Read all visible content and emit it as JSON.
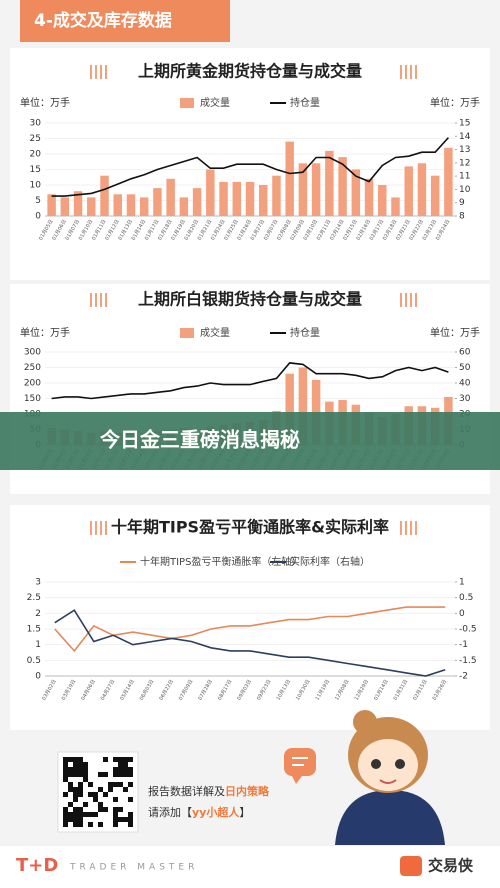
{
  "header": {
    "title": "4-成交及库存数据"
  },
  "banner": {
    "text": "今日金三重磅消息揭秘"
  },
  "chart_data": [
    {
      "type": "bar",
      "title": "上期所黄金期货持仓量与成交量",
      "ylabel": "单位：万手",
      "y2label": "单位：万手",
      "categories": [
        "01月05日",
        "01月06日",
        "01月07日",
        "01月10日",
        "01月11日",
        "01月12日",
        "01月13日",
        "01月14日",
        "01月17日",
        "01月18日",
        "01月19日",
        "01月20日",
        "01月21日",
        "01月24日",
        "01月25日",
        "01月26日",
        "01月27日",
        "02月07日",
        "02月08日",
        "02月09日",
        "02月10日",
        "02月11日",
        "02月14日",
        "02月15日",
        "02月16日",
        "02月17日",
        "02月18日",
        "02月21日",
        "02月22日",
        "02月23日",
        "02月24日"
      ],
      "series": [
        {
          "name": "成交量",
          "type": "bar",
          "color": "#f3a07e",
          "values": [
            7,
            6,
            8,
            6,
            13,
            7,
            7,
            6,
            9,
            12,
            6,
            9,
            15,
            11,
            11,
            11,
            10,
            13,
            24,
            17,
            17,
            21,
            19,
            15,
            12,
            10,
            6,
            16,
            17,
            13,
            22
          ]
        },
        {
          "name": "持仓量",
          "type": "line",
          "axis": "y2",
          "color": "#111111",
          "values": [
            9.5,
            9.5,
            9.6,
            9.7,
            10.0,
            10.4,
            10.8,
            11.1,
            11.5,
            11.8,
            12.1,
            12.4,
            11.6,
            11.6,
            11.9,
            11.9,
            11.9,
            11.5,
            11.2,
            11.3,
            12.4,
            12.4,
            11.9,
            11.0,
            10.6,
            11.8,
            12.4,
            12.5,
            12.8,
            12.8,
            13.9
          ]
        }
      ],
      "ylim": [
        0,
        30
      ],
      "yticks": [
        0,
        5,
        10,
        15,
        20,
        25,
        30
      ],
      "y2lim": [
        8,
        15
      ],
      "y2ticks": [
        8,
        9,
        10,
        11,
        12,
        13,
        14,
        15
      ],
      "legend": "top"
    },
    {
      "type": "bar",
      "title": "上期所白银期货持仓量与成交量",
      "ylabel": "单位：万手",
      "y2label": "单位：万手",
      "categories": [
        "01月05日",
        "01月06日",
        "01月07日",
        "01月10日",
        "01月11日",
        "01月12日",
        "01月13日",
        "01月14日",
        "01月17日",
        "01月18日",
        "01月19日",
        "01月20日",
        "01月21日",
        "01月24日",
        "01月25日",
        "01月26日",
        "01月27日",
        "02月07日",
        "02月08日",
        "02月09日",
        "02月10日",
        "02月11日",
        "02月14日",
        "02月15日",
        "02月16日",
        "02月17日",
        "02月18日",
        "02月21日",
        "02月22日",
        "02月23日",
        "02月24日"
      ],
      "series": [
        {
          "name": "成交量",
          "type": "bar",
          "color": "#f3a07e",
          "values": [
            55,
            50,
            45,
            40,
            45,
            40,
            40,
            40,
            45,
            50,
            55,
            50,
            60,
            65,
            70,
            75,
            80,
            110,
            230,
            250,
            210,
            140,
            145,
            130,
            105,
            90,
            100,
            125,
            125,
            120,
            155
          ]
        },
        {
          "name": "持仓量",
          "type": "line",
          "axis": "y2",
          "color": "#111111",
          "values": [
            30,
            31,
            31,
            30,
            31,
            32,
            33,
            33,
            34,
            35,
            37,
            38,
            40,
            39,
            39,
            39,
            41,
            43,
            53,
            52,
            46,
            46,
            46,
            45,
            43,
            44,
            48,
            50,
            48,
            50,
            47
          ]
        }
      ],
      "ylim": [
        0,
        300
      ],
      "yticks": [
        0,
        50,
        100,
        150,
        200,
        250,
        300
      ],
      "y2lim": [
        0,
        60
      ],
      "y2ticks": [
        0,
        10,
        20,
        30,
        40,
        50,
        60
      ],
      "legend": "top"
    },
    {
      "type": "line",
      "title": "十年期TIPS盈亏平衡通胀率&实际利率",
      "categories": [
        "03月02日",
        "03月19日",
        "04月06日",
        "04月27日",
        "05月14日",
        "06月03日",
        "06月22日",
        "07月09日",
        "07月28日",
        "08月17日",
        "09月03日",
        "09月23日",
        "10月13日",
        "10月30日",
        "11月19日",
        "12月08日",
        "12月29日",
        "01月14日",
        "01月31日",
        "02月15日",
        "02月26日"
      ],
      "series": [
        {
          "name": "十年期TIPS盈亏平衡通胀率（左轴）",
          "type": "line",
          "color": "#e8875a",
          "values": [
            1.5,
            0.8,
            1.6,
            1.3,
            1.4,
            1.3,
            1.2,
            1.3,
            1.5,
            1.6,
            1.6,
            1.7,
            1.8,
            1.8,
            1.9,
            1.9,
            2.0,
            2.1,
            2.2,
            2.2,
            2.2
          ]
        },
        {
          "name": "实际利率（右轴）",
          "type": "line",
          "axis": "y2",
          "color": "#2d3e5c",
          "values": [
            -0.3,
            0.1,
            -0.9,
            -0.7,
            -1.0,
            -0.9,
            -0.8,
            -0.9,
            -1.1,
            -1.2,
            -1.2,
            -1.3,
            -1.4,
            -1.4,
            -1.5,
            -1.6,
            -1.7,
            -1.8,
            -1.9,
            -2.0,
            -1.8
          ]
        }
      ],
      "ylim": [
        0,
        3
      ],
      "yticks": [
        0,
        0.5,
        1,
        1.5,
        2,
        2.5,
        3
      ],
      "y2lim": [
        -2,
        1
      ],
      "y2ticks": [
        -2,
        -1.5,
        -1,
        -0.5,
        0,
        0.5,
        1
      ],
      "legend": "top"
    }
  ],
  "footer": {
    "line1": [
      "报告数据详解及",
      "日内策略"
    ],
    "line2": [
      "请添加【",
      "yy小超人",
      "】"
    ],
    "brand": "T+D",
    "brand_sub": "TRADER MASTER",
    "brand_right": "交易侠"
  }
}
